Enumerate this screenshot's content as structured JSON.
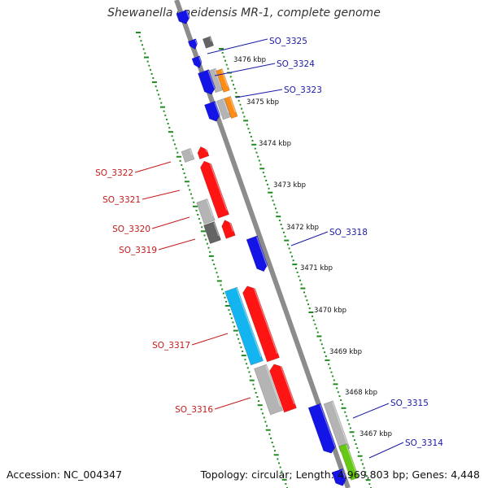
{
  "title": "Shewanella oneidensis MR-1, complete genome",
  "footer": {
    "accession": "Accession: NC_004347",
    "stats": "Topology: circular; Length: 4,969,803 bp; Genes: 4,448"
  },
  "ticks": [
    "3476 kbp",
    "3475 kbp",
    "3474 kbp",
    "3473 kbp",
    "3472 kbp",
    "3471 kbp",
    "3470 kbp",
    "3469 kbp",
    "3468 kbp",
    "3467 kbp"
  ],
  "gene_labels_forward": [
    "SO_3325",
    "SO_3324",
    "SO_3323",
    "SO_3318",
    "SO_3315",
    "SO_3314"
  ],
  "gene_labels_reverse": [
    "SO_3322",
    "SO_3321",
    "SO_3320",
    "SO_3319",
    "SO_3317",
    "SO_3316"
  ],
  "colors": {
    "backbone": "#8c8c8c",
    "tick_dots": "#1e8c1e",
    "cog_blue": "#1414e6",
    "cog_red": "#ff1414",
    "cog_orange": "#ff8c14",
    "cog_cyan": "#14b4f0",
    "cog_gray": "#b4b4b4",
    "cog_dark": "#646464",
    "cog_green": "#64c814",
    "label_forward": "#1a1aa6",
    "label_reverse": "#c41a1a"
  }
}
